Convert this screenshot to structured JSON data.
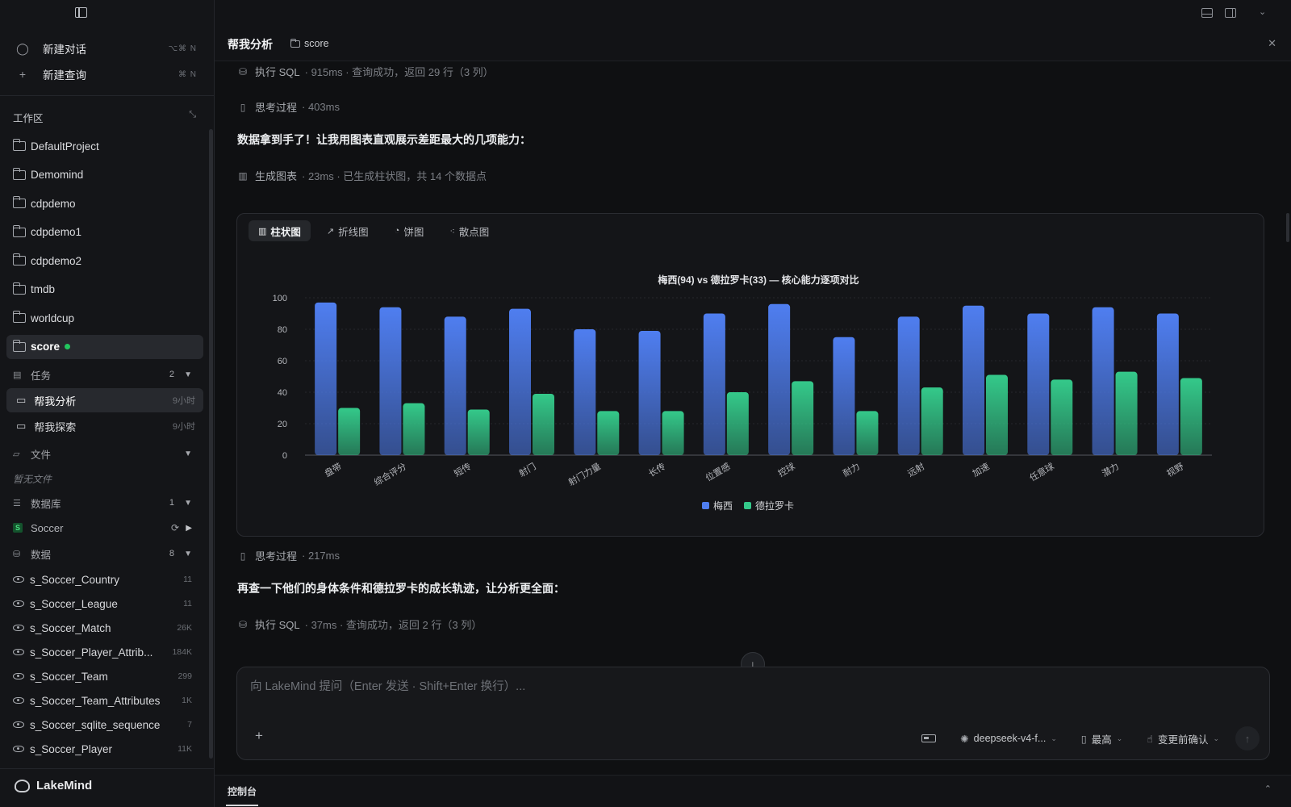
{
  "sidebar": {
    "new_chat": {
      "label": "新建对话",
      "shortcut": "⌥⌘ N"
    },
    "new_query": {
      "label": "新建查询",
      "shortcut": "⌘ N"
    },
    "workspace_title": "工作区",
    "projects": [
      "DefaultProject",
      "Demomind",
      "cdpdemo",
      "cdpdemo1",
      "cdpdemo2",
      "tmdb",
      "worldcup",
      "score"
    ],
    "active_project": "score",
    "tasks": {
      "label": "任务",
      "count": "2",
      "items": [
        {
          "label": "帮我分析",
          "time": "9小时"
        },
        {
          "label": "帮我探索",
          "time": "9小时"
        }
      ]
    },
    "files": {
      "label": "文件",
      "empty": "暂无文件"
    },
    "database": {
      "label": "数据库",
      "count": "1",
      "item": "Soccer",
      "badge": "S"
    },
    "data": {
      "label": "数据",
      "count": "8",
      "tables": [
        {
          "name": "s_Soccer_Country",
          "count": "11"
        },
        {
          "name": "s_Soccer_League",
          "count": "11"
        },
        {
          "name": "s_Soccer_Match",
          "count": "26K"
        },
        {
          "name": "s_Soccer_Player_Attrib...",
          "count": "184K"
        },
        {
          "name": "s_Soccer_Team",
          "count": "299"
        },
        {
          "name": "s_Soccer_Team_Attributes",
          "count": "1K"
        },
        {
          "name": "s_Soccer_sqlite_sequence",
          "count": "7"
        },
        {
          "name": "s_Soccer_Player",
          "count": "11K"
        }
      ]
    },
    "brand": "LakeMind"
  },
  "conversation": {
    "title": "帮我分析",
    "tag": "score"
  },
  "steps": {
    "sql1": {
      "name": "执行 SQL",
      "meta": "· 915ms · 查询成功，返回 29 行（3 列）"
    },
    "think1": {
      "name": "思考过程",
      "meta": "· 403ms"
    },
    "msg1": "数据拿到手了！让我用图表直观展示差距最大的几项能力：",
    "chart_step": {
      "name": "生成图表",
      "meta": "· 23ms · 已生成柱状图，共 14 个数据点"
    },
    "think2": {
      "name": "思考过程",
      "meta": "· 217ms"
    },
    "msg2": "再查一下他们的身体条件和德拉罗卡的成长轨迹，让分析更全面：",
    "sql2": {
      "name": "执行 SQL",
      "meta": "· 37ms · 查询成功，返回 2 行（3 列）"
    }
  },
  "chart_tabs": [
    "柱状图",
    "折线图",
    "饼图",
    "散点图"
  ],
  "active_chart_tab": "柱状图",
  "chart_data": {
    "type": "bar",
    "title": "梅西(94) vs 德拉罗卡(33) — 核心能力逐项对比",
    "categories": [
      "盘带",
      "综合评分",
      "短传",
      "射门",
      "射门力量",
      "长传",
      "位置感",
      "控球",
      "耐力",
      "远射",
      "加速",
      "任意球",
      "潜力",
      "视野"
    ],
    "series": [
      {
        "name": "梅西",
        "color": "#4f7ef0",
        "values": [
          97,
          94,
          88,
          93,
          80,
          79,
          90,
          96,
          75,
          88,
          95,
          90,
          94,
          90
        ]
      },
      {
        "name": "德拉罗卡",
        "color": "#34c98a",
        "values": [
          30,
          33,
          29,
          39,
          28,
          28,
          40,
          47,
          28,
          43,
          51,
          48,
          53,
          49
        ]
      }
    ],
    "ylim": [
      0,
      100
    ],
    "yticks": [
      0,
      20,
      40,
      60,
      80,
      100
    ],
    "grid": true,
    "legend": "bottom-center"
  },
  "composer": {
    "placeholder": "向 LakeMind 提问（Enter 发送 · Shift+Enter 换行）...",
    "model": "deepseek-v4-f...",
    "effort": "最高",
    "confirm": "变更前确认"
  },
  "console": {
    "label": "控制台"
  }
}
